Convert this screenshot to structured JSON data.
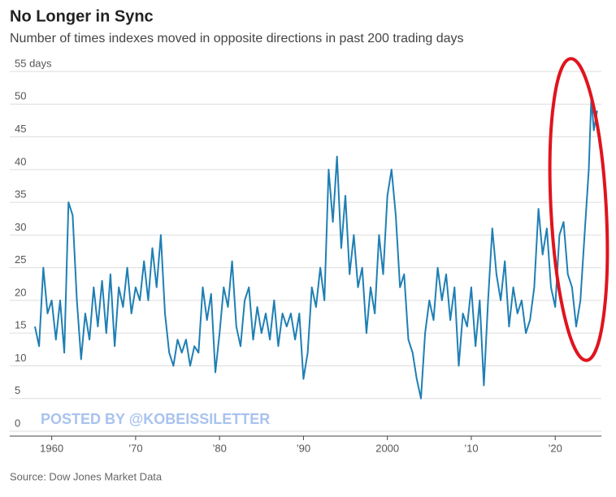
{
  "chart_data": {
    "type": "line",
    "title": "No Longer in Sync",
    "subtitle": "Number of times indexes moved in opposite directions in past 200 trading days",
    "source": "Source: Dow Jones Market Data",
    "watermark": "POSTED BY @KOBEISSILETTER",
    "color": "#1f7fb4",
    "grid": true,
    "xlim": [
      1955,
      2025.5
    ],
    "ylim": [
      0,
      55
    ],
    "yticks": [
      0,
      5,
      10,
      15,
      20,
      25,
      30,
      35,
      40,
      45,
      50,
      {
        "value": 55,
        "label": "55 days"
      }
    ],
    "xticks": [
      1960,
      {
        "value": 1970,
        "label": "’70"
      },
      {
        "value": 1980,
        "label": "’80"
      },
      {
        "value": 1990,
        "label": "’90"
      },
      2000,
      {
        "value": 2010,
        "label": "’10"
      },
      {
        "value": 2020,
        "label": "’20"
      }
    ],
    "x": [
      1958,
      1958.5,
      1959,
      1959.5,
      1960,
      1960.5,
      1961,
      1961.5,
      1962,
      1962.5,
      1963,
      1963.5,
      1964,
      1964.5,
      1965,
      1965.5,
      1966,
      1966.5,
      1967,
      1967.5,
      1968,
      1968.5,
      1969,
      1969.5,
      1970,
      1970.5,
      1971,
      1971.5,
      1972,
      1972.5,
      1973,
      1973.5,
      1974,
      1974.5,
      1975,
      1975.5,
      1976,
      1976.5,
      1977,
      1977.5,
      1978,
      1978.5,
      1979,
      1979.5,
      1980,
      1980.5,
      1981,
      1981.5,
      1982,
      1982.5,
      1983,
      1983.5,
      1984,
      1984.5,
      1985,
      1985.5,
      1986,
      1986.5,
      1987,
      1987.5,
      1988,
      1988.5,
      1989,
      1989.5,
      1990,
      1990.5,
      1991,
      1991.5,
      1992,
      1992.5,
      1993,
      1993.5,
      1994,
      1994.5,
      1995,
      1995.5,
      1996,
      1996.5,
      1997,
      1997.5,
      1998,
      1998.5,
      1999,
      1999.5,
      2000,
      2000.5,
      2001,
      2001.5,
      2002,
      2002.5,
      2003,
      2003.5,
      2004,
      2004.5,
      2005,
      2005.5,
      2006,
      2006.5,
      2007,
      2007.5,
      2008,
      2008.5,
      2009,
      2009.5,
      2010,
      2010.5,
      2011,
      2011.5,
      2012,
      2012.5,
      2013,
      2013.5,
      2014,
      2014.5,
      2015,
      2015.5,
      2016,
      2016.5,
      2017,
      2017.5,
      2018,
      2018.5,
      2019,
      2019.5,
      2020,
      2020.5,
      2021,
      2021.5,
      2022,
      2022.5,
      2023,
      2023.5,
      2024,
      2024.3,
      2024.6,
      2025
    ],
    "values": [
      16,
      13,
      25,
      18,
      20,
      14,
      20,
      12,
      35,
      33,
      20,
      11,
      18,
      14,
      22,
      16,
      23,
      15,
      24,
      13,
      22,
      19,
      25,
      18,
      22,
      20,
      26,
      20,
      28,
      22,
      30,
      18,
      12,
      10,
      14,
      12,
      14,
      10,
      13,
      12,
      22,
      17,
      21,
      9,
      15,
      22,
      19,
      26,
      16,
      13,
      20,
      22,
      14,
      19,
      15,
      18,
      14,
      20,
      13,
      18,
      16,
      18,
      14,
      18,
      8,
      12,
      22,
      19,
      25,
      20,
      40,
      32,
      42,
      28,
      36,
      24,
      30,
      22,
      25,
      15,
      22,
      18,
      30,
      24,
      36,
      40,
      33,
      22,
      24,
      14,
      12,
      8,
      5,
      15,
      20,
      17,
      25,
      20,
      24,
      17,
      22,
      10,
      18,
      16,
      22,
      13,
      20,
      7,
      20,
      31,
      24,
      20,
      26,
      16,
      22,
      18,
      20,
      15,
      17,
      22,
      34,
      27,
      31,
      22,
      19,
      30,
      32,
      24,
      22,
      16,
      20,
      30,
      40,
      51,
      46,
      49
    ]
  }
}
